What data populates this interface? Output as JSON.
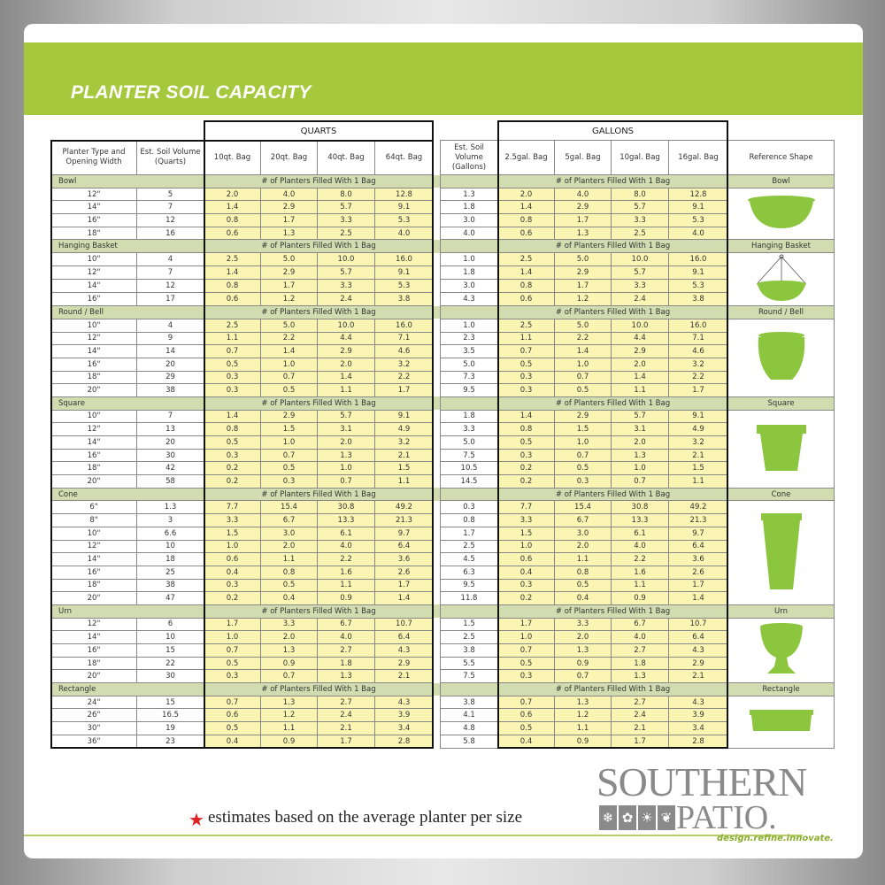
{
  "title": "PLANTER SOIL CAPACITY",
  "groups": {
    "quarts": "QUARTS",
    "gallons": "GALLONS"
  },
  "headers": [
    "Planter Type and Opening Width",
    "Est. Soil Volume (Quarts)",
    "10qt. Bag",
    "20qt. Bag",
    "40qt. Bag",
    "64qt. Bag",
    "Est. Soil Volume (Gallons)",
    "2.5gal. Bag",
    "5gal. Bag",
    "10gal. Bag",
    "16gal. Bag",
    "Reference Shape"
  ],
  "section_label": "# of Planters Filled With 1 Bag",
  "shape_color": "#8cc63f",
  "sections": [
    {
      "name": "Bowl",
      "shape": "bowl",
      "rows": [
        [
          "12\"",
          "5",
          "2.0",
          "4.0",
          "8.0",
          "12.8",
          "1.3",
          "2.0",
          "4.0",
          "8.0",
          "12.8"
        ],
        [
          "14\"",
          "7",
          "1.4",
          "2.9",
          "5.7",
          "9.1",
          "1.8",
          "1.4",
          "2.9",
          "5.7",
          "9.1"
        ],
        [
          "16\"",
          "12",
          "0.8",
          "1.7",
          "3.3",
          "5.3",
          "3.0",
          "0.8",
          "1.7",
          "3.3",
          "5.3"
        ],
        [
          "18\"",
          "16",
          "0.6",
          "1.3",
          "2.5",
          "4.0",
          "4.0",
          "0.6",
          "1.3",
          "2.5",
          "4.0"
        ]
      ]
    },
    {
      "name": "Hanging Basket",
      "shape": "hanging-basket",
      "rows": [
        [
          "10\"",
          "4",
          "2.5",
          "5.0",
          "10.0",
          "16.0",
          "1.0",
          "2.5",
          "5.0",
          "10.0",
          "16.0"
        ],
        [
          "12\"",
          "7",
          "1.4",
          "2.9",
          "5.7",
          "9.1",
          "1.8",
          "1.4",
          "2.9",
          "5.7",
          "9.1"
        ],
        [
          "14\"",
          "12",
          "0.8",
          "1.7",
          "3.3",
          "5.3",
          "3.0",
          "0.8",
          "1.7",
          "3.3",
          "5.3"
        ],
        [
          "16\"",
          "17",
          "0.6",
          "1.2",
          "2.4",
          "3.8",
          "4.3",
          "0.6",
          "1.2",
          "2.4",
          "3.8"
        ]
      ]
    },
    {
      "name": "Round / Bell",
      "shape": "round-bell",
      "rows": [
        [
          "10\"",
          "4",
          "2.5",
          "5.0",
          "10.0",
          "16.0",
          "1.0",
          "2.5",
          "5.0",
          "10.0",
          "16.0"
        ],
        [
          "12\"",
          "9",
          "1.1",
          "2.2",
          "4.4",
          "7.1",
          "2.3",
          "1.1",
          "2.2",
          "4.4",
          "7.1"
        ],
        [
          "14\"",
          "14",
          "0.7",
          "1.4",
          "2.9",
          "4.6",
          "3.5",
          "0.7",
          "1.4",
          "2.9",
          "4.6"
        ],
        [
          "16\"",
          "20",
          "0.5",
          "1.0",
          "2.0",
          "3.2",
          "5.0",
          "0.5",
          "1.0",
          "2.0",
          "3.2"
        ],
        [
          "18\"",
          "29",
          "0.3",
          "0.7",
          "1.4",
          "2.2",
          "7.3",
          "0.3",
          "0.7",
          "1.4",
          "2.2"
        ],
        [
          "20\"",
          "38",
          "0.3",
          "0.5",
          "1.1",
          "1.7",
          "9.5",
          "0.3",
          "0.5",
          "1.1",
          "1.7"
        ]
      ]
    },
    {
      "name": "Square",
      "shape": "square",
      "rows": [
        [
          "10\"",
          "7",
          "1.4",
          "2.9",
          "5.7",
          "9.1",
          "1.8",
          "1.4",
          "2.9",
          "5.7",
          "9.1"
        ],
        [
          "12\"",
          "13",
          "0.8",
          "1.5",
          "3.1",
          "4.9",
          "3.3",
          "0.8",
          "1.5",
          "3.1",
          "4.9"
        ],
        [
          "14\"",
          "20",
          "0.5",
          "1.0",
          "2.0",
          "3.2",
          "5.0",
          "0.5",
          "1.0",
          "2.0",
          "3.2"
        ],
        [
          "16\"",
          "30",
          "0.3",
          "0.7",
          "1.3",
          "2.1",
          "7.5",
          "0.3",
          "0.7",
          "1.3",
          "2.1"
        ],
        [
          "18\"",
          "42",
          "0.2",
          "0.5",
          "1.0",
          "1.5",
          "10.5",
          "0.2",
          "0.5",
          "1.0",
          "1.5"
        ],
        [
          "20\"",
          "58",
          "0.2",
          "0.3",
          "0.7",
          "1.1",
          "14.5",
          "0.2",
          "0.3",
          "0.7",
          "1.1"
        ]
      ]
    },
    {
      "name": "Cone",
      "shape": "cone",
      "rows": [
        [
          "6\"",
          "1.3",
          "7.7",
          "15.4",
          "30.8",
          "49.2",
          "0.3",
          "7.7",
          "15.4",
          "30.8",
          "49.2"
        ],
        [
          "8\"",
          "3",
          "3.3",
          "6.7",
          "13.3",
          "21.3",
          "0.8",
          "3.3",
          "6.7",
          "13.3",
          "21.3"
        ],
        [
          "10\"",
          "6.6",
          "1.5",
          "3.0",
          "6.1",
          "9.7",
          "1.7",
          "1.5",
          "3.0",
          "6.1",
          "9.7"
        ],
        [
          "12\"",
          "10",
          "1.0",
          "2.0",
          "4.0",
          "6.4",
          "2.5",
          "1.0",
          "2.0",
          "4.0",
          "6.4"
        ],
        [
          "14\"",
          "18",
          "0.6",
          "1.1",
          "2.2",
          "3.6",
          "4.5",
          "0.6",
          "1.1",
          "2.2",
          "3.6"
        ],
        [
          "16\"",
          "25",
          "0.4",
          "0.8",
          "1.6",
          "2.6",
          "6.3",
          "0.4",
          "0.8",
          "1.6",
          "2.6"
        ],
        [
          "18\"",
          "38",
          "0.3",
          "0.5",
          "1.1",
          "1.7",
          "9.5",
          "0.3",
          "0.5",
          "1.1",
          "1.7"
        ],
        [
          "20\"",
          "47",
          "0.2",
          "0.4",
          "0.9",
          "1.4",
          "11.8",
          "0.2",
          "0.4",
          "0.9",
          "1.4"
        ]
      ]
    },
    {
      "name": "Urn",
      "shape": "urn",
      "rows": [
        [
          "12\"",
          "6",
          "1.7",
          "3.3",
          "6.7",
          "10.7",
          "1.5",
          "1.7",
          "3.3",
          "6.7",
          "10.7"
        ],
        [
          "14\"",
          "10",
          "1.0",
          "2.0",
          "4.0",
          "6.4",
          "2.5",
          "1.0",
          "2.0",
          "4.0",
          "6.4"
        ],
        [
          "16\"",
          "15",
          "0.7",
          "1.3",
          "2.7",
          "4.3",
          "3.8",
          "0.7",
          "1.3",
          "2.7",
          "4.3"
        ],
        [
          "18\"",
          "22",
          "0.5",
          "0.9",
          "1.8",
          "2.9",
          "5.5",
          "0.5",
          "0.9",
          "1.8",
          "2.9"
        ],
        [
          "20\"",
          "30",
          "0.3",
          "0.7",
          "1.3",
          "2.1",
          "7.5",
          "0.3",
          "0.7",
          "1.3",
          "2.1"
        ]
      ]
    },
    {
      "name": "Rectangle",
      "shape": "rectangle",
      "rows": [
        [
          "24\"",
          "15",
          "0.7",
          "1.3",
          "2.7",
          "4.3",
          "3.8",
          "0.7",
          "1.3",
          "2.7",
          "4.3"
        ],
        [
          "26\"",
          "16.5",
          "0.6",
          "1.2",
          "2.4",
          "3.9",
          "4.1",
          "0.6",
          "1.2",
          "2.4",
          "3.9"
        ],
        [
          "30\"",
          "19",
          "0.5",
          "1.1",
          "2.1",
          "3.4",
          "4.8",
          "0.5",
          "1.1",
          "2.1",
          "3.4"
        ],
        [
          "36\"",
          "23",
          "0.4",
          "0.9",
          "1.7",
          "2.8",
          "5.8",
          "0.4",
          "0.9",
          "1.7",
          "2.8"
        ]
      ]
    }
  ],
  "footer": {
    "star_icon": "red-star-icon",
    "note": "estimates based on the average planter per size"
  },
  "logo": {
    "line1": "SOUTHERN",
    "line2": "PATIO.",
    "tagline": "design.refine.innovate.",
    "icons": [
      "snowflake-icon",
      "flower-icon",
      "sun-icon",
      "leaf-icon"
    ]
  }
}
